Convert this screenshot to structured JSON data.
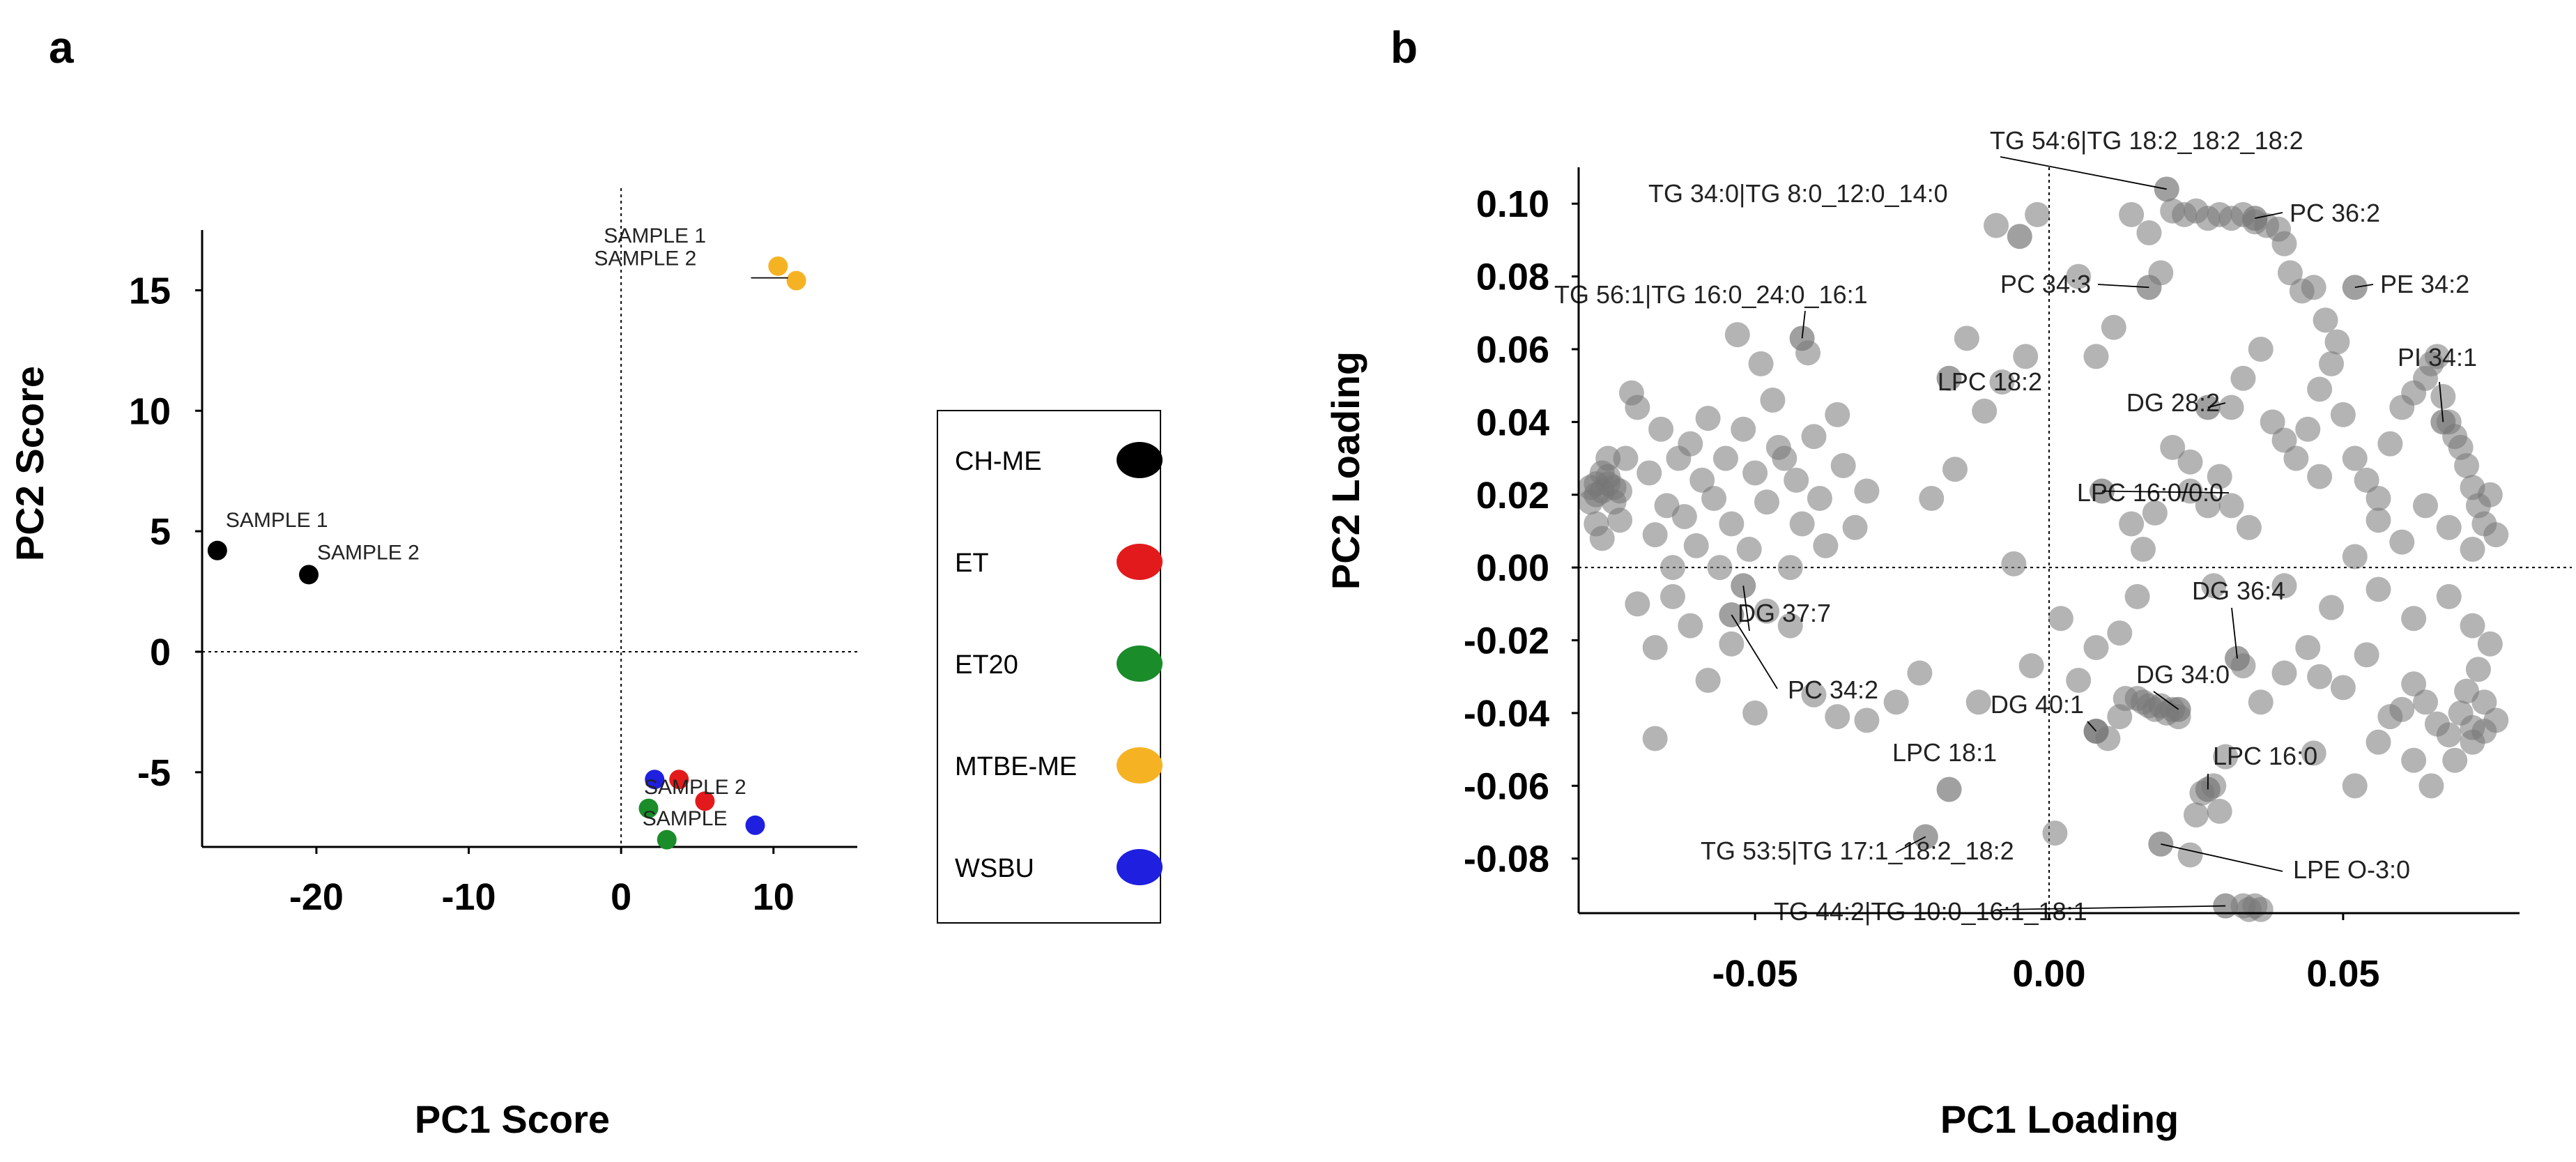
{
  "chart_data": [
    {
      "type": "scatter",
      "panel": "a",
      "title": "",
      "xlabel": "PC1 Score",
      "ylabel": "PC2 Score",
      "xlim": [
        -27.5,
        15.5
      ],
      "ylim": [
        -8.1,
        17.5
      ],
      "xticks": [
        -20,
        -10,
        0,
        10
      ],
      "yticks": [
        -5,
        0,
        5,
        10,
        15
      ],
      "zero_lines": true,
      "legend_position": "right",
      "series": [
        {
          "name": "CH-ME",
          "color": "#000000",
          "points": [
            {
              "x": -26.5,
              "y": 4.2,
              "label": "SAMPLE 1"
            },
            {
              "x": -20.5,
              "y": 3.2,
              "label": "SAMPLE 2"
            }
          ]
        },
        {
          "name": "ET",
          "color": "#e31a1c",
          "points": [
            {
              "x": 3.8,
              "y": -5.3,
              "label": ""
            },
            {
              "x": 5.5,
              "y": -6.2,
              "label": ""
            }
          ]
        },
        {
          "name": "ET20",
          "color": "#1a8c2a",
          "points": [
            {
              "x": 1.8,
              "y": -6.5,
              "label": ""
            },
            {
              "x": 3.0,
              "y": -7.8,
              "label": ""
            }
          ]
        },
        {
          "name": "MTBE-ME",
          "color": "#f5b324",
          "points": [
            {
              "x": 10.3,
              "y": 16.0,
              "label": "SAMPLE 1"
            },
            {
              "x": 11.5,
              "y": 15.4,
              "label": "SAMPLE 2"
            }
          ]
        },
        {
          "name": "WSBU",
          "color": "#1f1fe0",
          "points": [
            {
              "x": 2.2,
              "y": -5.3,
              "label": ""
            },
            {
              "x": 8.8,
              "y": -7.2,
              "label": ""
            }
          ]
        }
      ],
      "annotations": [
        "SAMPLE 2",
        "SAMPLE"
      ]
    },
    {
      "type": "scatter",
      "panel": "b",
      "title": "",
      "xlabel": "PC1 Loading",
      "ylabel": "PC2 Loading",
      "xlim": [
        -0.08,
        0.08
      ],
      "ylim": [
        -0.095,
        0.11
      ],
      "xticks": [
        "-0.05",
        "0.00",
        "0.05"
      ],
      "xtick_values": [
        -0.05,
        0.0,
        0.05
      ],
      "yticks": [
        "0.10",
        "0.08",
        "0.06",
        "0.04",
        "0.02",
        "0.00",
        "-0.02",
        "-0.04",
        "-0.06",
        "-0.08"
      ],
      "ytick_values": [
        0.1,
        0.08,
        0.06,
        0.04,
        0.02,
        0.0,
        -0.02,
        -0.04,
        -0.06,
        -0.08
      ],
      "zero_lines": true,
      "point_color": "#777777",
      "labeled_points": [
        {
          "label": "TG 54:6|TG 18:2_18:2_18:2",
          "x": 0.02,
          "y": 0.104
        },
        {
          "label": "TG 34:0|TG 8:0_12:0_14:0",
          "x": -0.005,
          "y": 0.091
        },
        {
          "label": "PC 36:2",
          "x": 0.035,
          "y": 0.096
        },
        {
          "label": "PC 34:3",
          "x": 0.017,
          "y": 0.077
        },
        {
          "label": "PE 34:2",
          "x": 0.052,
          "y": 0.077
        },
        {
          "label": "TG 56:1|TG 16:0_24:0_16:1",
          "x": -0.042,
          "y": 0.063
        },
        {
          "label": "LPC 18:2",
          "x": -0.017,
          "y": 0.052
        },
        {
          "label": "DG 28:2",
          "x": 0.027,
          "y": 0.044
        },
        {
          "label": "PI 34:1",
          "x": 0.067,
          "y": 0.04
        },
        {
          "label": "LPC 16:0/0:0",
          "x": 0.009,
          "y": 0.021
        },
        {
          "label": "DG 37:7",
          "x": -0.052,
          "y": -0.005
        },
        {
          "label": "PC 34:2",
          "x": -0.054,
          "y": -0.013
        },
        {
          "label": "DG 36:4",
          "x": 0.032,
          "y": -0.025
        },
        {
          "label": "DG 34:0",
          "x": 0.022,
          "y": -0.039
        },
        {
          "label": "DG 40:1",
          "x": 0.008,
          "y": -0.045
        },
        {
          "label": "LPC 18:1",
          "x": -0.017,
          "y": -0.061
        },
        {
          "label": "LPC 16:0",
          "x": 0.027,
          "y": -0.061
        },
        {
          "label": "TG 53:5|TG 17:1_18:2_18:2",
          "x": -0.021,
          "y": -0.074
        },
        {
          "label": "LPE O-3:0",
          "x": 0.019,
          "y": -0.076
        },
        {
          "label": "TG 44:2|TG 10:0_16:1_18:1",
          "x": 0.03,
          "y": -0.093
        }
      ],
      "points": [
        [
          -0.078,
          0.022
        ],
        [
          -0.077,
          0.023
        ],
        [
          -0.076,
          0.021
        ],
        [
          -0.075,
          0.023
        ],
        [
          -0.074,
          0.022
        ],
        [
          -0.077,
          0.02
        ],
        [
          -0.075,
          0.025
        ],
        [
          -0.073,
          0.021
        ],
        [
          -0.076,
          0.026
        ],
        [
          -0.078,
          0.018
        ],
        [
          -0.075,
          0.03
        ],
        [
          -0.074,
          0.018
        ],
        [
          -0.077,
          0.012
        ],
        [
          -0.076,
          0.008
        ],
        [
          -0.073,
          0.013
        ],
        [
          -0.072,
          0.03
        ],
        [
          -0.071,
          0.048
        ],
        [
          -0.07,
          0.044
        ],
        [
          -0.068,
          0.026
        ],
        [
          -0.067,
          0.009
        ],
        [
          -0.066,
          0.038
        ],
        [
          -0.065,
          0.017
        ],
        [
          -0.064,
          0.0
        ],
        [
          -0.063,
          0.03
        ],
        [
          -0.062,
          0.014
        ],
        [
          -0.061,
          0.034
        ],
        [
          -0.06,
          0.006
        ],
        [
          -0.059,
          0.024
        ],
        [
          -0.058,
          0.041
        ],
        [
          -0.057,
          0.019
        ],
        [
          -0.056,
          0.0
        ],
        [
          -0.055,
          0.03
        ],
        [
          -0.054,
          0.012
        ],
        [
          -0.053,
          0.064
        ],
        [
          -0.052,
          0.038
        ],
        [
          -0.051,
          0.005
        ],
        [
          -0.05,
          0.026
        ],
        [
          -0.049,
          0.056
        ],
        [
          -0.048,
          0.018
        ],
        [
          -0.047,
          0.046
        ],
        [
          -0.046,
          0.033
        ],
        [
          -0.045,
          0.03
        ],
        [
          -0.044,
          0.0
        ],
        [
          -0.043,
          0.024
        ],
        [
          -0.042,
          0.012
        ],
        [
          -0.041,
          0.059
        ],
        [
          -0.04,
          0.036
        ],
        [
          -0.039,
          0.019
        ],
        [
          -0.038,
          0.006
        ],
        [
          -0.036,
          0.042
        ],
        [
          -0.035,
          0.028
        ],
        [
          -0.033,
          0.011
        ],
        [
          -0.031,
          0.021
        ],
        [
          -0.07,
          -0.01
        ],
        [
          -0.067,
          -0.022
        ],
        [
          -0.064,
          -0.008
        ],
        [
          -0.061,
          -0.016
        ],
        [
          -0.058,
          -0.031
        ],
        [
          -0.054,
          -0.021
        ],
        [
          -0.05,
          -0.04
        ],
        [
          -0.048,
          -0.012
        ],
        [
          -0.044,
          -0.016
        ],
        [
          -0.04,
          -0.035
        ],
        [
          -0.036,
          -0.041
        ],
        [
          -0.031,
          -0.042
        ],
        [
          -0.067,
          -0.047
        ],
        [
          -0.026,
          -0.037
        ],
        [
          -0.022,
          -0.029
        ],
        [
          -0.012,
          -0.037
        ],
        [
          -0.02,
          0.019
        ],
        [
          -0.016,
          0.027
        ],
        [
          -0.011,
          0.043
        ],
        [
          -0.008,
          0.051
        ],
        [
          -0.004,
          0.058
        ],
        [
          -0.006,
          0.001
        ],
        [
          -0.014,
          0.063
        ],
        [
          -0.009,
          0.094
        ],
        [
          -0.002,
          0.097
        ],
        [
          0.005,
          0.08
        ],
        [
          0.008,
          0.058
        ],
        [
          0.011,
          0.066
        ],
        [
          0.014,
          0.097
        ],
        [
          0.017,
          0.092
        ],
        [
          0.019,
          0.081
        ],
        [
          0.021,
          0.098
        ],
        [
          0.023,
          0.097
        ],
        [
          0.025,
          0.098
        ],
        [
          0.027,
          0.096
        ],
        [
          0.029,
          0.097
        ],
        [
          0.031,
          0.096
        ],
        [
          0.033,
          0.097
        ],
        [
          0.035,
          0.095
        ],
        [
          0.037,
          0.094
        ],
        [
          0.039,
          0.093
        ],
        [
          0.04,
          0.089
        ],
        [
          0.041,
          0.081
        ],
        [
          0.043,
          0.076
        ],
        [
          0.045,
          0.077
        ],
        [
          0.047,
          0.068
        ],
        [
          0.049,
          0.062
        ],
        [
          0.036,
          0.06
        ],
        [
          0.033,
          0.052
        ],
        [
          0.031,
          0.044
        ],
        [
          0.038,
          0.04
        ],
        [
          0.04,
          0.035
        ],
        [
          0.042,
          0.03
        ],
        [
          0.044,
          0.038
        ],
        [
          0.046,
          0.049
        ],
        [
          0.048,
          0.056
        ],
        [
          0.05,
          0.042
        ],
        [
          0.052,
          0.03
        ],
        [
          0.054,
          0.024
        ],
        [
          0.056,
          0.019
        ],
        [
          0.058,
          0.034
        ],
        [
          0.06,
          0.044
        ],
        [
          0.062,
          0.048
        ],
        [
          0.064,
          0.052
        ],
        [
          0.065,
          0.056
        ],
        [
          0.066,
          0.058
        ],
        [
          0.067,
          0.047
        ],
        [
          0.068,
          0.04
        ],
        [
          0.069,
          0.036
        ],
        [
          0.07,
          0.033
        ],
        [
          0.071,
          0.028
        ],
        [
          0.072,
          0.022
        ],
        [
          0.073,
          0.017
        ],
        [
          0.074,
          0.012
        ],
        [
          0.075,
          0.02
        ],
        [
          0.076,
          0.009
        ],
        [
          0.072,
          0.005
        ],
        [
          0.068,
          0.011
        ],
        [
          0.064,
          0.017
        ],
        [
          0.06,
          0.007
        ],
        [
          0.056,
          0.013
        ],
        [
          0.052,
          0.003
        ],
        [
          0.046,
          0.025
        ],
        [
          0.024,
          0.021
        ],
        [
          0.018,
          0.015
        ],
        [
          0.016,
          0.005
        ],
        [
          0.014,
          0.012
        ],
        [
          0.021,
          0.033
        ],
        [
          0.024,
          0.029
        ],
        [
          0.027,
          0.017
        ],
        [
          0.029,
          0.025
        ],
        [
          0.031,
          0.017
        ],
        [
          0.034,
          0.011
        ],
        [
          0.028,
          -0.005
        ],
        [
          0.04,
          -0.005
        ],
        [
          0.048,
          -0.011
        ],
        [
          0.056,
          -0.006
        ],
        [
          0.062,
          -0.014
        ],
        [
          0.068,
          -0.008
        ],
        [
          0.072,
          -0.016
        ],
        [
          0.075,
          -0.021
        ],
        [
          0.073,
          -0.028
        ],
        [
          0.071,
          -0.034
        ],
        [
          0.074,
          -0.037
        ],
        [
          0.076,
          -0.042
        ],
        [
          0.072,
          -0.044
        ],
        [
          0.07,
          -0.04
        ],
        [
          0.068,
          -0.046
        ],
        [
          0.066,
          -0.043
        ],
        [
          0.064,
          -0.037
        ],
        [
          0.062,
          -0.032
        ],
        [
          0.06,
          -0.039
        ],
        [
          0.058,
          -0.041
        ],
        [
          0.056,
          -0.048
        ],
        [
          0.062,
          -0.053
        ],
        [
          0.065,
          -0.06
        ],
        [
          0.069,
          -0.053
        ],
        [
          0.072,
          -0.048
        ],
        [
          0.074,
          -0.045
        ],
        [
          0.054,
          -0.024
        ],
        [
          0.05,
          -0.033
        ],
        [
          0.046,
          -0.03
        ],
        [
          0.044,
          -0.022
        ],
        [
          0.04,
          -0.029
        ],
        [
          0.036,
          -0.037
        ],
        [
          0.033,
          -0.027
        ],
        [
          0.03,
          -0.052
        ],
        [
          0.026,
          -0.062
        ],
        [
          0.028,
          -0.06
        ],
        [
          0.029,
          -0.067
        ],
        [
          0.025,
          -0.068
        ],
        [
          0.015,
          -0.036
        ],
        [
          0.016,
          -0.037
        ],
        [
          0.017,
          -0.038
        ],
        [
          0.018,
          -0.039
        ],
        [
          0.019,
          -0.038
        ],
        [
          0.02,
          -0.04
        ],
        [
          0.021,
          -0.039
        ],
        [
          0.022,
          -0.041
        ],
        [
          0.013,
          -0.036
        ],
        [
          0.012,
          -0.041
        ],
        [
          0.008,
          -0.045
        ],
        [
          0.01,
          -0.047
        ],
        [
          0.005,
          -0.031
        ],
        [
          0.015,
          -0.008
        ],
        [
          0.012,
          -0.018
        ],
        [
          0.008,
          -0.022
        ],
        [
          0.002,
          -0.014
        ],
        [
          -0.003,
          -0.027
        ],
        [
          0.033,
          -0.093
        ],
        [
          0.034,
          -0.094
        ],
        [
          0.035,
          -0.093
        ],
        [
          0.036,
          -0.094
        ],
        [
          0.024,
          -0.079
        ],
        [
          0.001,
          -0.073
        ],
        [
          0.045,
          -0.051
        ],
        [
          0.052,
          -0.06
        ]
      ]
    }
  ]
}
